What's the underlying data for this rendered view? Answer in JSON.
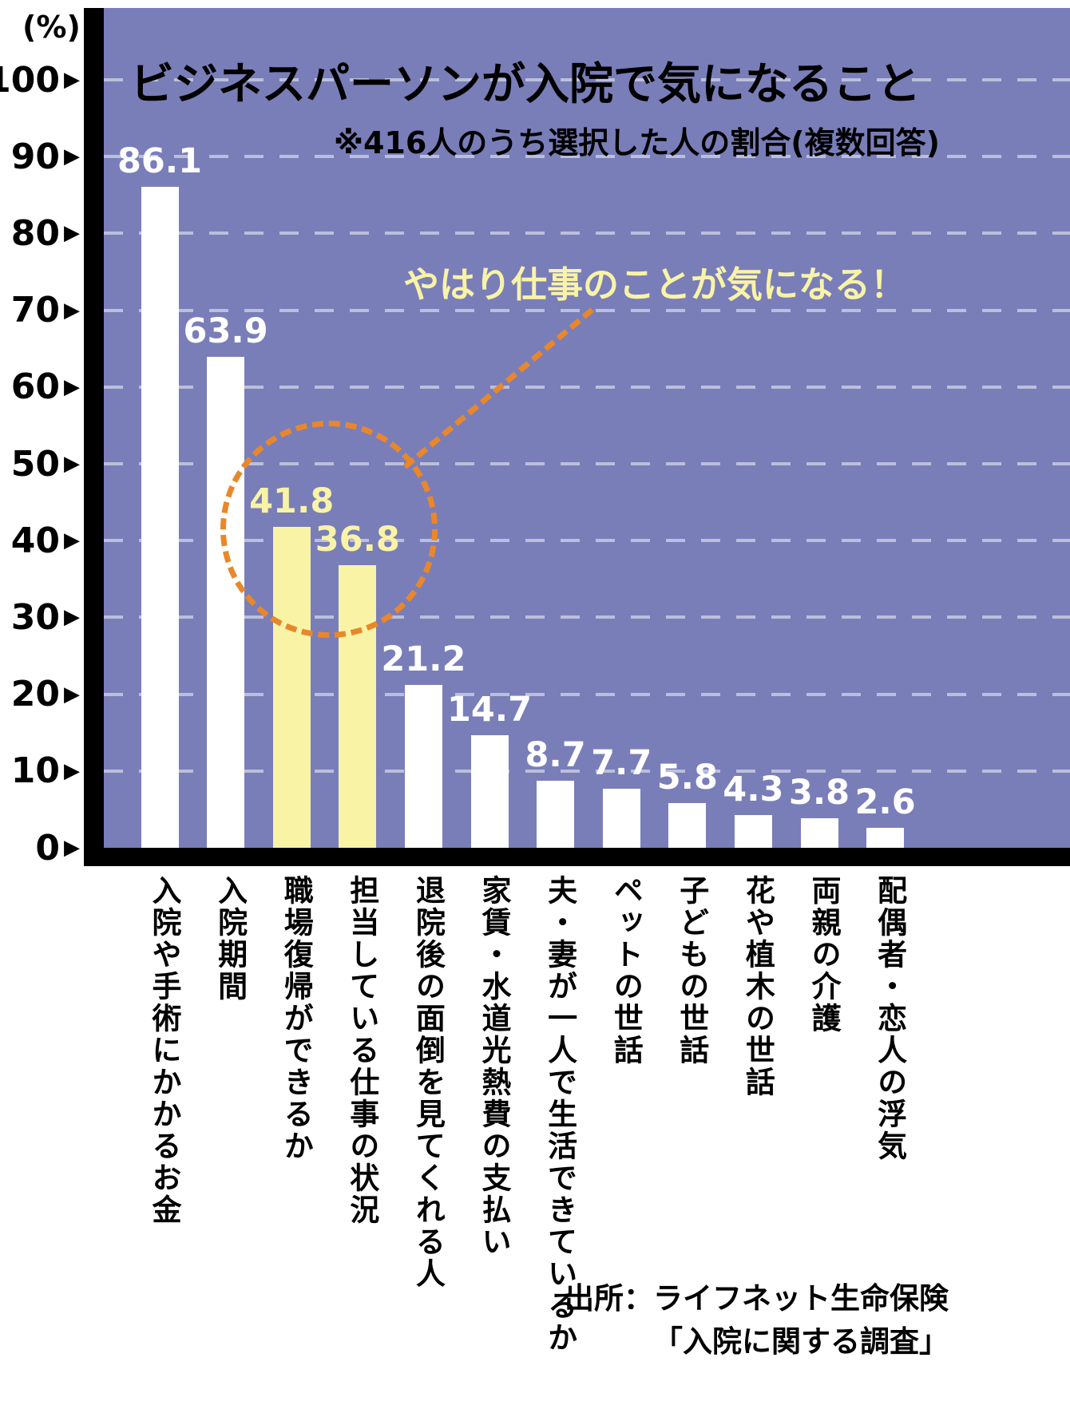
{
  "chart_data": {
    "type": "bar",
    "title": "ビジネスパーソンが入院で気になること",
    "subtitle": "※416人のうち選択した人の割合(複数回答)",
    "ylabel": "(%)",
    "ylim": [
      0,
      100
    ],
    "yticks": [
      0,
      10,
      20,
      30,
      40,
      50,
      60,
      70,
      80,
      90,
      100
    ],
    "tick_marker": "▶",
    "grid": true,
    "legend_position": "none",
    "categories": [
      "入院や手術にかかるお金",
      "入院期間",
      "職場復帰ができるか",
      "担当している仕事の状況",
      "退院後の面倒を見てくれる人",
      "家賃・水道光熱費の支払い",
      "夫・妻が一人で生活できているか",
      "ペットの世話",
      "子どもの世話",
      "花や植木の世話",
      "両親の介護",
      "配偶者・恋人の浮気"
    ],
    "values": [
      86.1,
      63.9,
      41.8,
      36.8,
      21.2,
      14.7,
      8.7,
      7.7,
      5.8,
      4.3,
      3.8,
      2.6
    ],
    "highlighted_indices": [
      2,
      3
    ],
    "annotation": "やはり仕事のことが気になる！",
    "source_line1": "出所：ライフネット生命保険",
    "source_line2": "「入院に関する調査」",
    "colors": {
      "background": "#797eb9",
      "bar": "#ffffff",
      "bar_highlight": "#f9f3a6",
      "annotation_text": "#f9f3a6",
      "dashed_accent": "#e8872b",
      "axis": "#000000",
      "gridline": "rgba(255,255,255,0.5)"
    }
  }
}
